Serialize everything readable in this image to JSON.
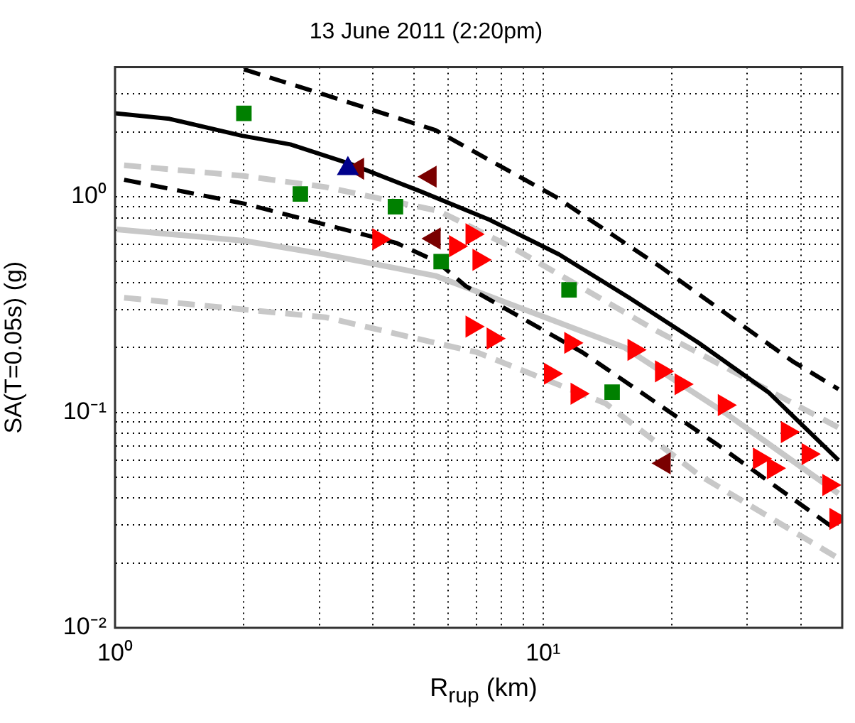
{
  "chart_data": {
    "type": "scatter",
    "title": "13 June 2011 (2:20pm)",
    "xlabel": "R$_{rup}$ (km)",
    "ylabel": "SA(T=0.05s) (g)",
    "log": "xy",
    "grid": true,
    "legend": false,
    "xlim": [
      1,
      50
    ],
    "ylim": [
      0.01,
      4
    ],
    "xticks": [
      {
        "value": 1,
        "label": "10⁰"
      },
      {
        "value": 2,
        "label": null
      },
      {
        "value": 3,
        "label": null
      },
      {
        "value": 4,
        "label": null
      },
      {
        "value": 5,
        "label": null
      },
      {
        "value": 6,
        "label": null
      },
      {
        "value": 7,
        "label": null
      },
      {
        "value": 8,
        "label": null
      },
      {
        "value": 9,
        "label": null
      },
      {
        "value": 10,
        "label": "10¹"
      },
      {
        "value": 20,
        "label": null
      },
      {
        "value": 30,
        "label": null
      },
      {
        "value": 40,
        "label": null
      }
    ],
    "yticks": [
      {
        "value": 0.01,
        "label": "10⁻²"
      },
      {
        "value": 0.02,
        "label": null
      },
      {
        "value": 0.03,
        "label": null
      },
      {
        "value": 0.04,
        "label": null
      },
      {
        "value": 0.05,
        "label": null
      },
      {
        "value": 0.06,
        "label": null
      },
      {
        "value": 0.07,
        "label": null
      },
      {
        "value": 0.08,
        "label": null
      },
      {
        "value": 0.09,
        "label": null
      },
      {
        "value": 0.1,
        "label": "10⁻¹"
      },
      {
        "value": 0.2,
        "label": null
      },
      {
        "value": 0.3,
        "label": null
      },
      {
        "value": 0.4,
        "label": null
      },
      {
        "value": 0.5,
        "label": null
      },
      {
        "value": 0.6,
        "label": null
      },
      {
        "value": 0.7,
        "label": null
      },
      {
        "value": 0.8,
        "label": null
      },
      {
        "value": 0.9,
        "label": null
      },
      {
        "value": 1,
        "label": "10⁰"
      },
      {
        "value": 2,
        "label": null
      },
      {
        "value": 3,
        "label": null
      }
    ],
    "series": [
      {
        "type": "line",
        "color": "#000000",
        "line_style": "dashed",
        "marker": "none",
        "x": [
          2.0,
          3.1,
          5.6,
          10.7,
          18.9,
          38.2,
          49
        ],
        "values": [
          3.9,
          2.97,
          2.04,
          1.0,
          0.47,
          0.173,
          0.128
        ]
      },
      {
        "type": "line",
        "color": "#000000",
        "line_style": "solid",
        "marker": "none",
        "x": [
          1,
          1.34,
          1.98,
          2.57,
          3.55,
          5.17,
          7.52,
          10.9,
          15.9,
          23.1,
          33.6,
          49
        ],
        "values": [
          2.44,
          2.3,
          1.92,
          1.75,
          1.42,
          1.06,
          0.78,
          0.54,
          0.34,
          0.21,
          0.124,
          0.06
        ]
      },
      {
        "type": "line",
        "color": "#000000",
        "line_style": "dashed",
        "marker": "none",
        "x": [
          1.05,
          2.0,
          4.55,
          5.65,
          6.6,
          12.4,
          25.5,
          49
        ],
        "values": [
          1.2,
          0.93,
          0.61,
          0.5,
          0.385,
          0.189,
          0.071,
          0.028
        ]
      },
      {
        "type": "line",
        "color": "#c8c8c8",
        "line_style": "dashed",
        "marker": "none",
        "x": [
          1.05,
          2.0,
          3.1,
          5.7,
          8.5,
          18.0,
          49
        ],
        "values": [
          1.4,
          1.25,
          1.11,
          0.86,
          0.58,
          0.245,
          0.085
        ]
      },
      {
        "type": "line",
        "color": "#c8c8c8",
        "line_style": "solid",
        "marker": "none",
        "x": [
          1.01,
          2.0,
          3.1,
          5.6,
          15.5,
          26.9,
          49
        ],
        "values": [
          0.706,
          0.625,
          0.54,
          0.43,
          0.2,
          0.098,
          0.042
        ]
      },
      {
        "type": "line",
        "color": "#c8c8c8",
        "line_style": "dashed",
        "marker": "none",
        "x": [
          1.05,
          2.0,
          3.1,
          5.6,
          7.0,
          14.0,
          23.2,
          49
        ],
        "values": [
          0.34,
          0.3,
          0.276,
          0.21,
          0.19,
          0.11,
          0.051,
          0.021
        ]
      },
      {
        "type": "scatter",
        "color": "#008000",
        "marker": "square",
        "x": [
          2.0,
          2.71,
          4.52,
          5.78,
          11.5,
          14.5
        ],
        "values": [
          2.44,
          1.03,
          0.9,
          0.5,
          0.37,
          0.124
        ]
      },
      {
        "type": "scatter",
        "color": "#00008b",
        "marker": "triangle",
        "x": [
          3.5
        ],
        "values": [
          1.35
        ]
      },
      {
        "type": "scatter",
        "color": "#7a0000",
        "marker": "triangle-left",
        "x": [
          3.69,
          5.45,
          5.57,
          19.2
        ],
        "values": [
          1.35,
          1.24,
          0.64,
          0.058
        ]
      },
      {
        "type": "scatter",
        "color": "#ff0000",
        "marker": "triangle-right",
        "x": [
          4.13,
          6.24,
          6.82,
          7.08,
          6.82,
          7.64,
          10.4,
          11.6,
          12.0,
          16.3,
          18.9,
          21.0,
          26.5,
          32.0,
          34.5,
          37.2,
          41.6,
          46.5,
          48.3
        ],
        "values": [
          0.635,
          0.59,
          0.67,
          0.51,
          0.25,
          0.22,
          0.151,
          0.21,
          0.122,
          0.195,
          0.155,
          0.135,
          0.108,
          0.061,
          0.055,
          0.081,
          0.064,
          0.046,
          0.032
        ]
      }
    ]
  }
}
